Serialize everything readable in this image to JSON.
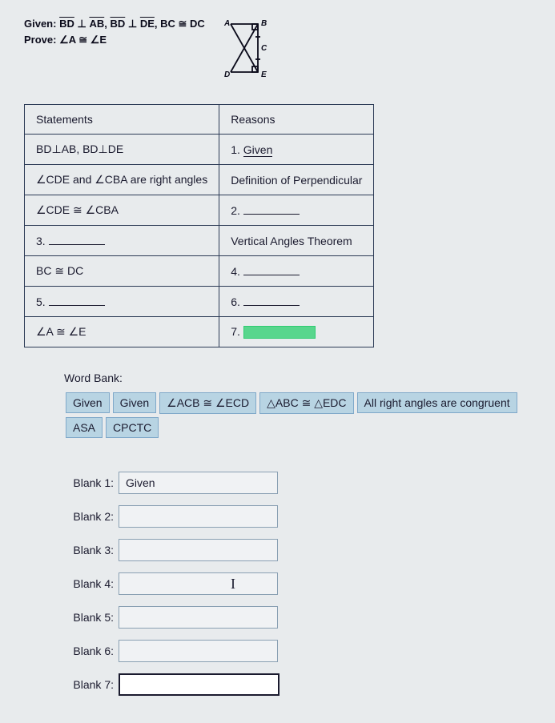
{
  "header": {
    "given_label": "Given:",
    "given_line": "BD ⊥ AB, BD ⊥ DE, BC ≅ DC",
    "given_bd": "BD",
    "given_ab": "AB",
    "given_de": "DE",
    "perp": "⊥",
    "comma": ",",
    "bc_cong_dc": "BC ≅ DC",
    "prove_label": "Prove:",
    "prove_text": "∠A ≅ ∠E"
  },
  "diagram": {
    "labels": {
      "A": "A",
      "B": "B",
      "C": "C",
      "D": "D",
      "E": "E"
    },
    "stroke": "#0a0a1a",
    "width": 70,
    "height": 80
  },
  "table": {
    "head_statements": "Statements",
    "head_reasons": "Reasons",
    "rows": [
      {
        "s_pre": "BD⊥AB, BD⊥DE",
        "r_pre": "1. ",
        "r_text": "Given",
        "r_underlined": true
      },
      {
        "s_pre": "∠CDE and ∠CBA are right angles",
        "r_pre": "Definition of Perpendicular"
      },
      {
        "s_pre": "∠CDE ≅ ∠CBA",
        "r_pre": "2. ",
        "r_blank": true
      },
      {
        "s_num": "3.",
        "s_blank": true,
        "r_pre": "Vertical Angles Theorem"
      },
      {
        "s_pre": "BC ≅ DC",
        "r_pre": "4. ",
        "r_blank": true
      },
      {
        "s_num": "5.",
        "s_blank": true,
        "r_pre": "6. ",
        "r_blank": true
      },
      {
        "s_pre": "∠A ≅ ∠E",
        "r_pre": "7. ",
        "r_green": true
      }
    ]
  },
  "wordbank": {
    "label": "Word Bank:",
    "items": [
      "Given",
      "Given",
      "∠ACB ≅ ∠ECD",
      "△ABC ≅ △EDC",
      "All right angles are congruent",
      "ASA",
      "CPCTC"
    ]
  },
  "blanks": {
    "items": [
      {
        "label": "Blank 1:",
        "value": "Given"
      },
      {
        "label": "Blank 2:",
        "value": ""
      },
      {
        "label": "Blank 3:",
        "value": ""
      },
      {
        "label": "Blank 4:",
        "value": "",
        "cursor": true
      },
      {
        "label": "Blank 5:",
        "value": ""
      },
      {
        "label": "Blank 6:",
        "value": ""
      },
      {
        "label": "Blank 7:",
        "value": "",
        "active": true
      }
    ]
  }
}
